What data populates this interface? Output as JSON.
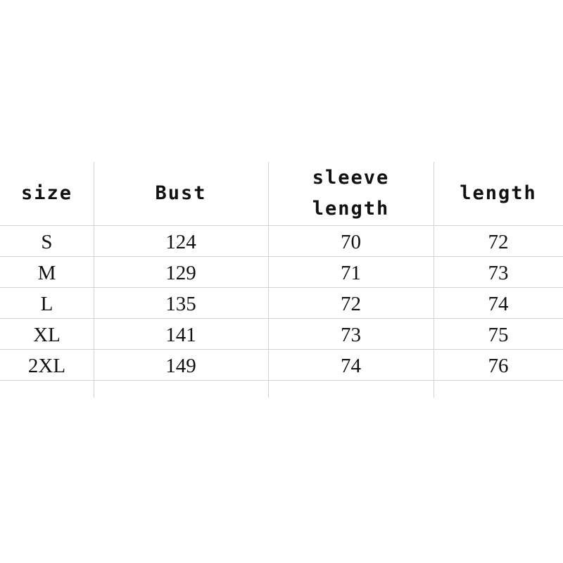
{
  "table": {
    "headers": [
      "size",
      "Bust",
      "sleeve length",
      "length"
    ],
    "header_lines": [
      [
        "size"
      ],
      [
        "Bust"
      ],
      [
        "sleeve",
        "length"
      ],
      [
        "length"
      ]
    ],
    "rows": [
      [
        "S",
        "124",
        "70",
        "72"
      ],
      [
        "M",
        "129",
        "71",
        "73"
      ],
      [
        "L",
        "135",
        "72",
        "74"
      ],
      [
        "XL",
        "141",
        "73",
        "75"
      ],
      [
        "2XL",
        "149",
        "74",
        "76"
      ]
    ]
  },
  "colors": {
    "grid": "#ccd4d4",
    "text": "#111111"
  }
}
